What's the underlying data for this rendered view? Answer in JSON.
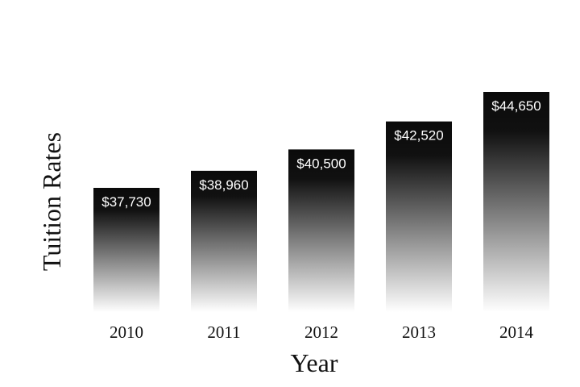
{
  "chart_data": {
    "type": "bar",
    "categories": [
      "2010",
      "2011",
      "2012",
      "2013",
      "2014"
    ],
    "values": [
      37730,
      38960,
      40500,
      42520,
      44650
    ],
    "data_labels": [
      "$37,730",
      "$38,960",
      "$40,500",
      "$42,520",
      "$44,650"
    ],
    "xlabel": "Year",
    "ylabel": "Tuition Rates",
    "y_axis_visible": false,
    "grid": false,
    "bar_gradient": {
      "top": "#0a0a0a",
      "bottom": "#ffffff"
    }
  }
}
